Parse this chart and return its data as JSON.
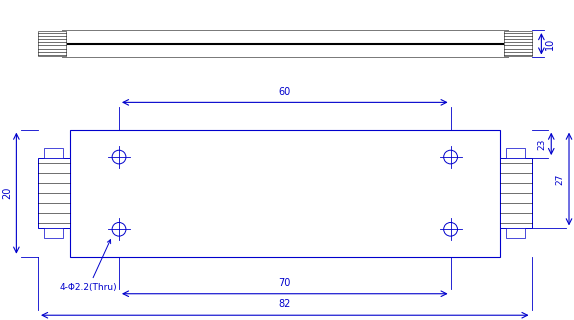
{
  "bg_color": "#ffffff",
  "draw_color": "#0000cc",
  "black_color": "#000000",
  "gray_color": "#777777",
  "dim_10": "10",
  "dim_60": "60",
  "dim_70": "70",
  "dim_82": "82",
  "dim_20": "20",
  "dim_23": "23",
  "dim_27": "27",
  "hole_label": "4-Φ2.2(Thru)"
}
